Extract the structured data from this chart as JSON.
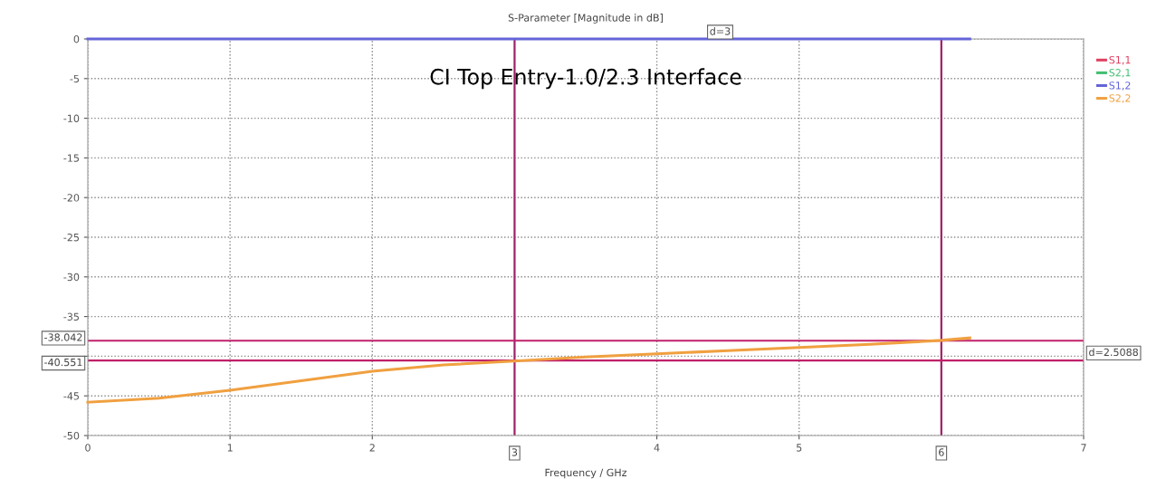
{
  "chart_data": {
    "type": "line",
    "title": "S-Parameter [Magnitude in dB]",
    "xlabel": "Frequency / GHz",
    "series": [
      {
        "name": "S1,1",
        "color": "#e04060"
      },
      {
        "name": "S2,1",
        "color": "#40c070"
      },
      {
        "name": "S1,2",
        "color": "#6464d8",
        "x": [
          0,
          6.2
        ],
        "values": [
          0,
          0
        ]
      },
      {
        "name": "S2,2",
        "color": "#f0a040",
        "x": [
          0,
          0.5,
          1,
          1.5,
          2,
          2.5,
          3,
          3.5,
          4,
          4.5,
          5,
          5.5,
          6,
          6.2
        ],
        "values": [
          -45.8,
          -45.3,
          -44.3,
          -43.1,
          -41.9,
          -41.1,
          -40.6,
          -40.1,
          -39.7,
          -39.3,
          -38.9,
          -38.5,
          -38.0,
          -37.7
        ]
      }
    ],
    "xlim": [
      0,
      7
    ],
    "xticks": [
      0,
      1,
      2,
      4,
      5,
      7
    ],
    "ylim": [
      -50,
      0
    ],
    "yticks": [
      -50,
      -45,
      {
        "value": -40,
        "label": null
      },
      -35,
      -30,
      -25,
      -20,
      -15,
      -10,
      -5,
      0
    ],
    "ref_lines": [
      {
        "axis": "x",
        "value": 3,
        "label": "3",
        "color": "#a0206a"
      },
      {
        "axis": "x",
        "value": 6,
        "label": "6",
        "color": "#a0206a"
      },
      {
        "axis": "y",
        "value": -38.042,
        "label": "-38.042",
        "color": "#c0206a"
      },
      {
        "axis": "y",
        "value": -40.551,
        "label": "-40.551",
        "color": "#c0206a"
      }
    ],
    "annotations": [
      "d=3",
      "d=2.5088",
      "CI Top Entry-1.0/2.3 Interface"
    ],
    "grid": true,
    "legend": "top right",
    "line_style": "solid",
    "marker": "none"
  }
}
